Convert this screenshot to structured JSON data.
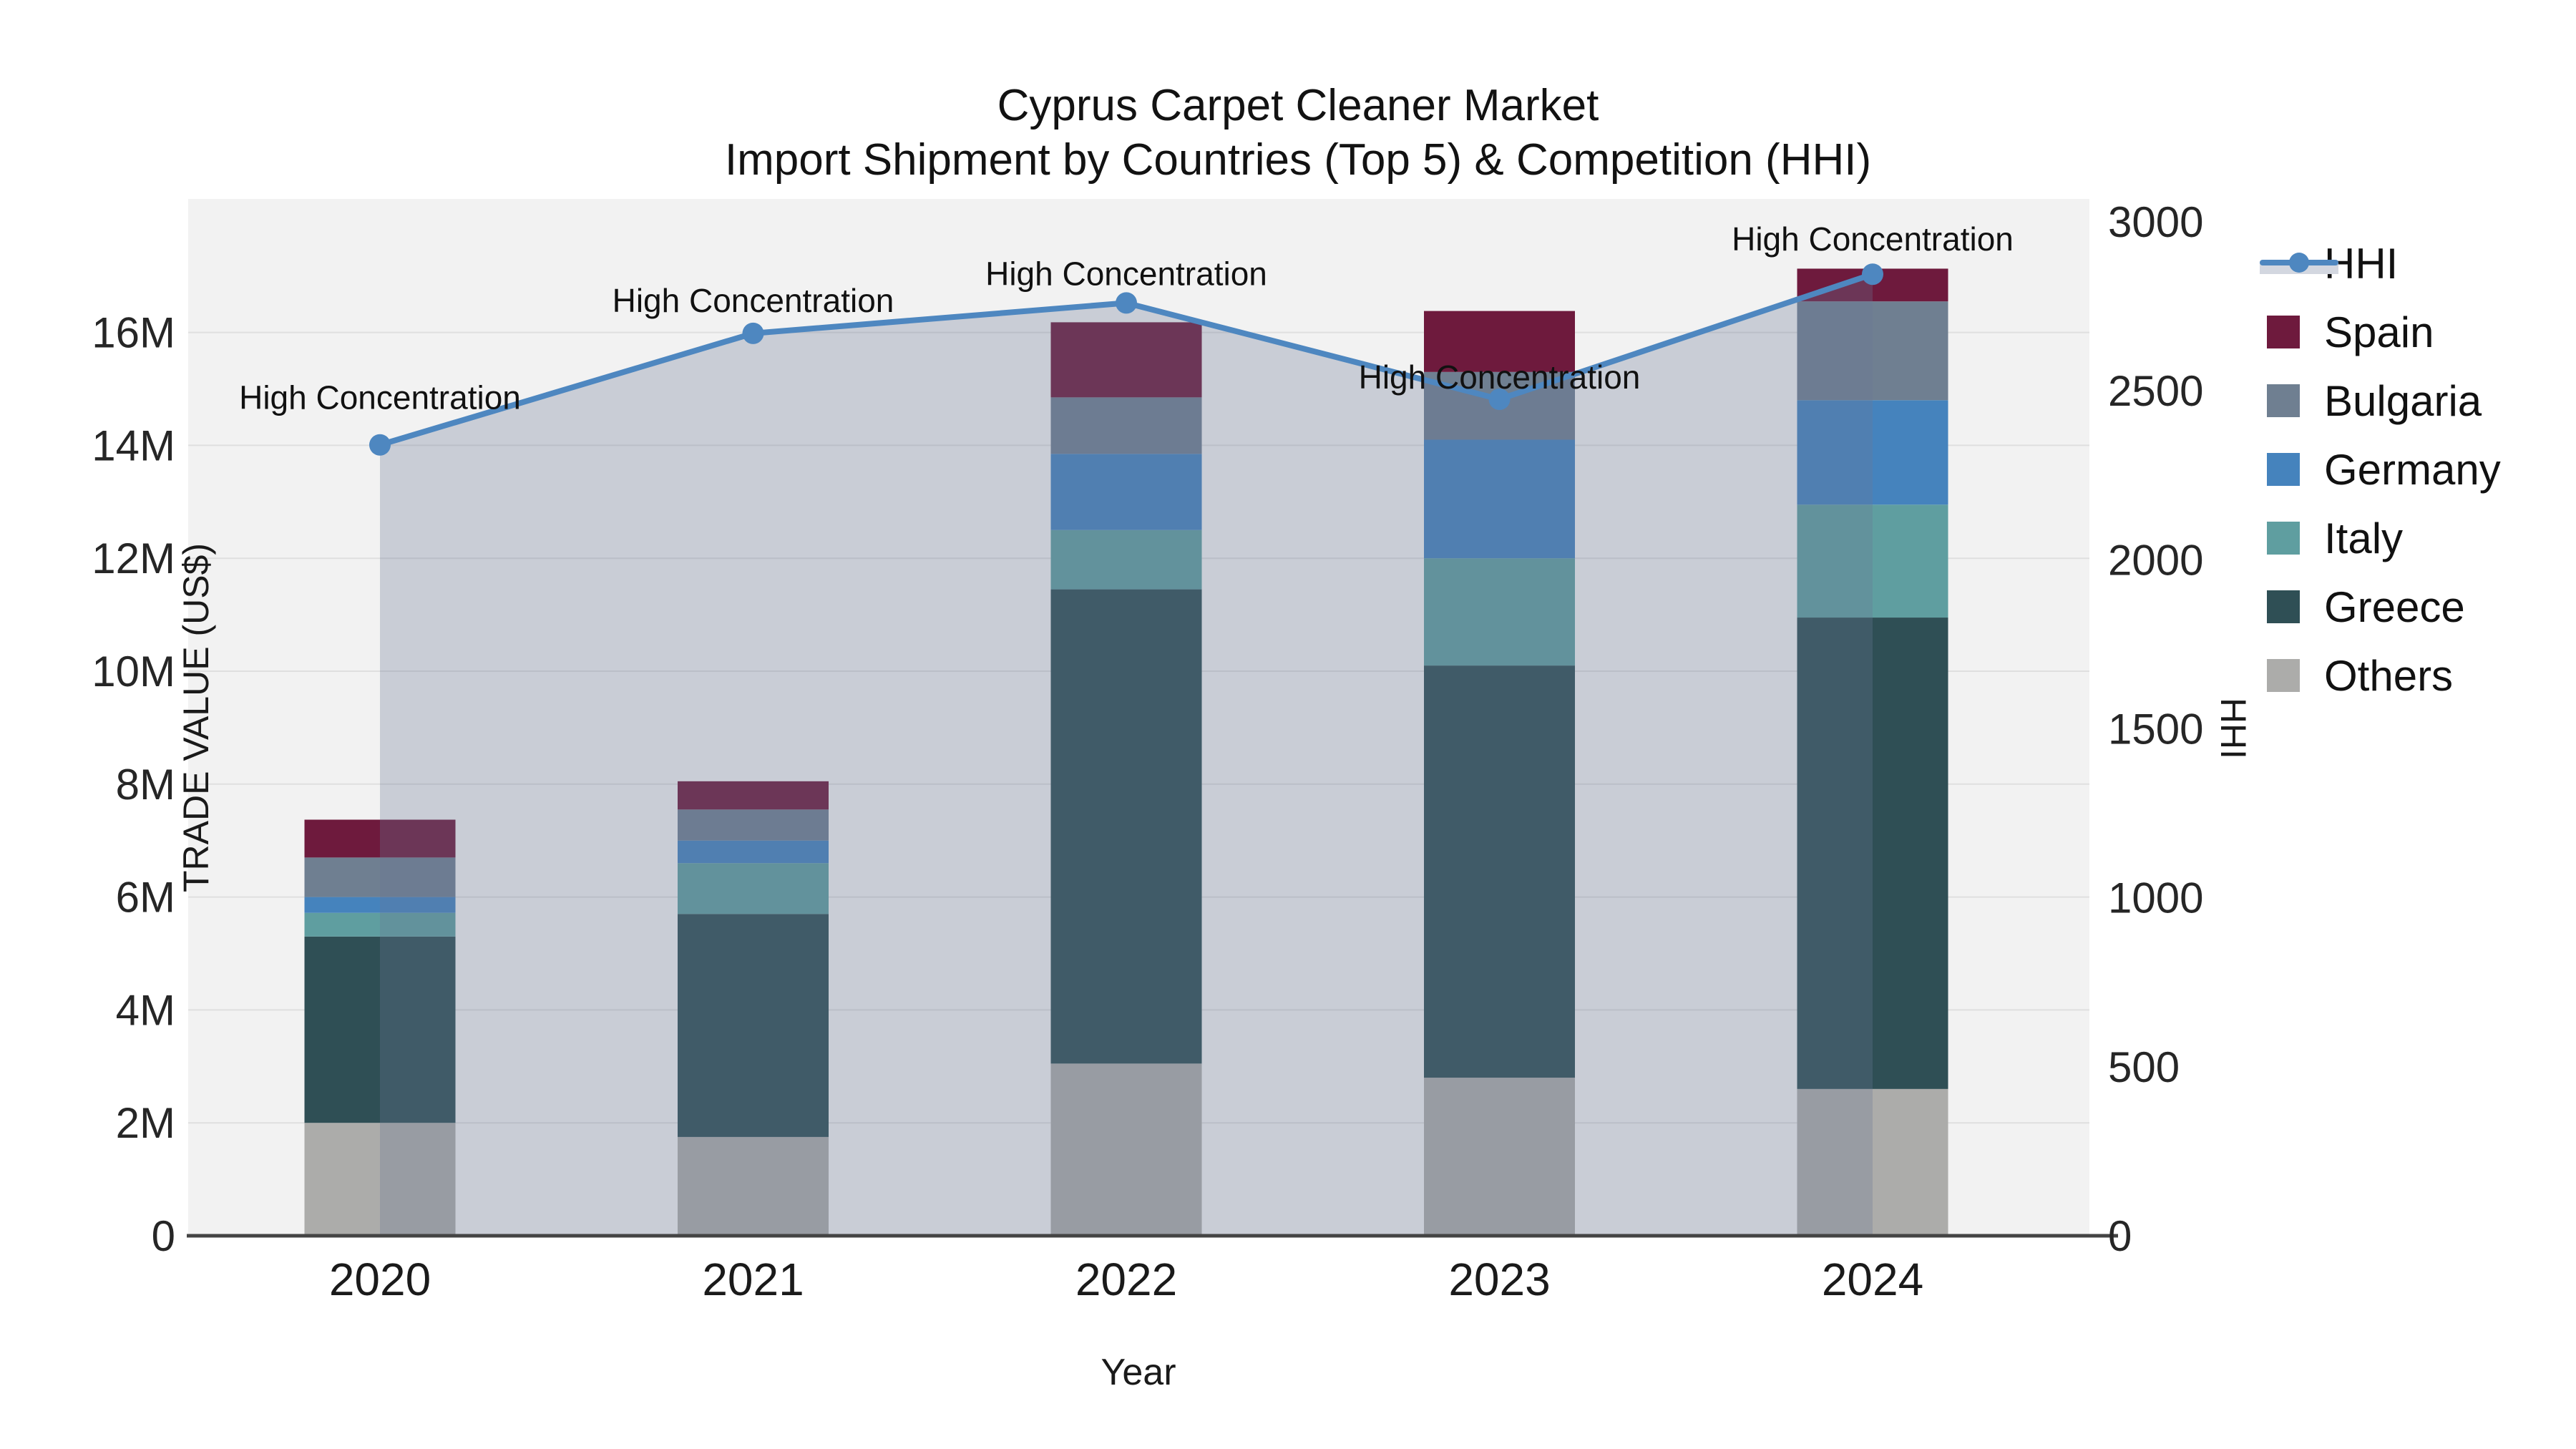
{
  "title": {
    "line1": "Cyprus Carpet Cleaner Market",
    "line2": "Import Shipment by Countries (Top 5) & Competition (HHI)"
  },
  "axes": {
    "y_left": {
      "title": "TRADE VALUE (US$)",
      "ticks": [
        {
          "label": "0",
          "value": 0
        },
        {
          "label": "2M",
          "value": 2
        },
        {
          "label": "4M",
          "value": 4
        },
        {
          "label": "6M",
          "value": 6
        },
        {
          "label": "8M",
          "value": 8
        },
        {
          "label": "10M",
          "value": 10
        },
        {
          "label": "12M",
          "value": 12
        },
        {
          "label": "14M",
          "value": 14
        },
        {
          "label": "16M",
          "value": 16
        }
      ]
    },
    "y_right": {
      "title": "HHI",
      "ticks": [
        {
          "label": "0",
          "value": 0
        },
        {
          "label": "500",
          "value": 500
        },
        {
          "label": "1000",
          "value": 1000
        },
        {
          "label": "1500",
          "value": 1500
        },
        {
          "label": "2000",
          "value": 2000
        },
        {
          "label": "2500",
          "value": 2500
        },
        {
          "label": "3000",
          "value": 3000
        }
      ]
    },
    "x": {
      "title": "Year"
    }
  },
  "legend": {
    "items": [
      {
        "label": "HHI",
        "type": "line",
        "color": "#4e87c0"
      },
      {
        "label": "Spain",
        "type": "square",
        "color": "#6e1a3d"
      },
      {
        "label": "Bulgaria",
        "type": "square",
        "color": "#6f7f91"
      },
      {
        "label": "Germany",
        "type": "square",
        "color": "#4583bd"
      },
      {
        "label": "Italy",
        "type": "square",
        "color": "#5f9ea0"
      },
      {
        "label": "Greece",
        "type": "square",
        "color": "#2f4f55"
      },
      {
        "label": "Others",
        "type": "square",
        "color": "#acacaa"
      }
    ]
  },
  "annotation_text": "High Concentration",
  "colors": {
    "plot_bg": "#f2f2f2",
    "gridline": "#dfdfdf",
    "axis_line": "#444444",
    "hhi_line": "#4e87c0",
    "hhi_area_fill_rgba": "rgba(105,119,149,0.30)"
  },
  "chart_data": {
    "type": "bar+line",
    "title": "Cyprus Carpet Cleaner Market — Import Shipment by Countries (Top 5) & Competition (HHI)",
    "xlabel": "Year",
    "ylabel_left": "TRADE VALUE (US$)",
    "ylabel_right": "HHI",
    "categories": [
      "2020",
      "2021",
      "2022",
      "2023",
      "2024"
    ],
    "stack_order_bottom_to_top": [
      "Others",
      "Greece",
      "Italy",
      "Germany",
      "Bulgaria",
      "Spain"
    ],
    "series": [
      {
        "name": "Others",
        "unit": "M US$",
        "color": "#acacaa",
        "values": [
          2.0,
          1.75,
          3.05,
          2.8,
          2.6
        ]
      },
      {
        "name": "Greece",
        "unit": "M US$",
        "color": "#2f4f55",
        "values": [
          3.3,
          3.95,
          8.4,
          7.3,
          8.35
        ]
      },
      {
        "name": "Italy",
        "unit": "M US$",
        "color": "#5f9ea0",
        "values": [
          0.42,
          0.9,
          1.05,
          1.9,
          2.0
        ]
      },
      {
        "name": "Germany",
        "unit": "M US$",
        "color": "#4583bd",
        "values": [
          0.28,
          0.4,
          1.35,
          2.1,
          1.85
        ]
      },
      {
        "name": "Bulgaria",
        "unit": "M US$",
        "color": "#6f7f91",
        "values": [
          0.7,
          0.55,
          1.0,
          1.2,
          1.75
        ]
      },
      {
        "name": "Spain",
        "unit": "M US$",
        "color": "#6e1a3d",
        "values": [
          0.67,
          0.5,
          1.33,
          1.08,
          0.58
        ]
      }
    ],
    "bar_totals_musd": [
      7.37,
      8.05,
      16.18,
      16.38,
      17.13
    ],
    "line_series": {
      "name": "HHI",
      "color": "#4e87c0",
      "values": [
        2340,
        2670,
        2760,
        2475,
        2845
      ],
      "area_fill": true,
      "annotations": [
        "High Concentration",
        "High Concentration",
        "High Concentration",
        "High Concentration",
        "High Concentration"
      ]
    },
    "ylim_left_musd": [
      0,
      18.35
    ],
    "ylim_right_hhi": [
      0,
      3000
    ],
    "grid": true,
    "legend_position": "right"
  }
}
